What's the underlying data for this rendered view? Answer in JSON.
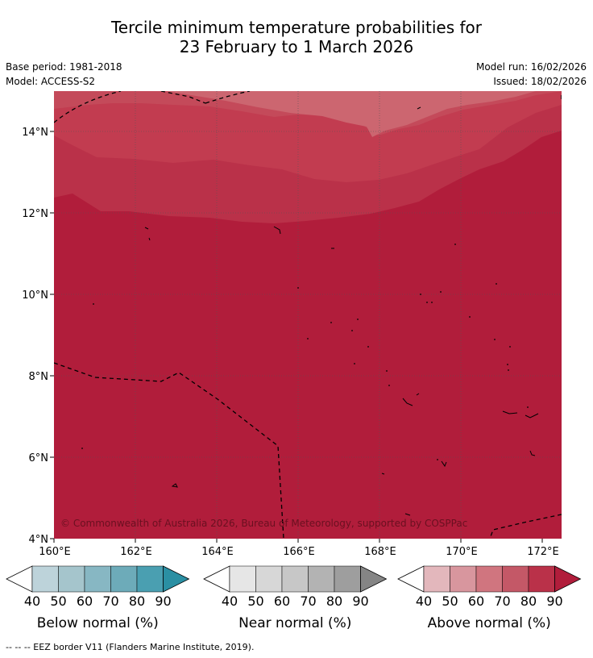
{
  "title": {
    "line1": "Tercile minimum temperature probabilities for",
    "line2": "23 February to 1 March 2026"
  },
  "meta": {
    "base_period": "Base period: 1981-2018",
    "model": "Model: ACCESS-S2",
    "model_run": "Model run: 16/02/2026",
    "issued": "Issued: 18/02/2026"
  },
  "map": {
    "x_ticks": [
      "160°E",
      "162°E",
      "164°E",
      "166°E",
      "168°E",
      "170°E",
      "172°E"
    ],
    "y_ticks": [
      "14°N",
      "12°N",
      "10°N",
      "8°N",
      "6°N",
      "4°N"
    ],
    "copyright": "© Commonwealth of Australia 2026, Bureau of Meteorology, supported by COSPPac"
  },
  "legends": [
    {
      "label": "Below normal (%)",
      "ticks": [
        "40",
        "50",
        "60",
        "70",
        "80",
        "90"
      ],
      "colors": [
        "#ffffff",
        "#bdd3da",
        "#a5c5cc",
        "#87b7c3",
        "#6dabb9",
        "#4a9fb1",
        "#2a8fa3"
      ]
    },
    {
      "label": "Near normal (%)",
      "ticks": [
        "40",
        "50",
        "60",
        "70",
        "80",
        "90"
      ],
      "colors": [
        "#ffffff",
        "#e6e6e6",
        "#d7d7d7",
        "#c7c7c7",
        "#b3b3b3",
        "#9e9e9e",
        "#858585"
      ]
    },
    {
      "label": "Above normal (%)",
      "ticks": [
        "40",
        "50",
        "60",
        "70",
        "80",
        "90"
      ],
      "colors": [
        "#ffffff",
        "#e3b7bc",
        "#d8969e",
        "#d0757f",
        "#c45867",
        "#ba3149",
        "#b11d3b"
      ]
    }
  ],
  "footnote": "--  --  -- EEZ border V11 (Flanders Marine Institute, 2019)."
}
